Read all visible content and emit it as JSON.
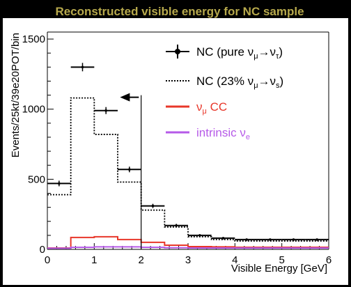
{
  "colors": {
    "title": "#b7a94c",
    "nc_pure": "#000000",
    "nc_sterile": "#000000",
    "numu_cc": "#e8372a",
    "nue": "#b65ae8",
    "frame_bg": "#000000",
    "plot_bg": "#ffffff"
  },
  "chart_data": {
    "type": "line",
    "title": "Reconstructed visible energy for NC sample",
    "xlabel": "Visible Energy [GeV]",
    "ylabel": "Events/25kt/39e20POT/bin",
    "xlim": [
      0,
      6
    ],
    "ylim": [
      0,
      1550
    ],
    "x_ticks": [
      0,
      1,
      2,
      3,
      4,
      5,
      6
    ],
    "y_ticks": [
      0,
      500,
      1000,
      1500
    ],
    "grid": false,
    "legend_position": "top-right",
    "bin_edges": [
      0,
      0.5,
      1.0,
      1.5,
      2.0,
      2.5,
      3.0,
      3.5,
      4.0,
      4.5,
      5.0,
      5.5,
      6.0
    ],
    "series": [
      {
        "name": "NC (pure νμ→ντ)",
        "label_parts": {
          "text": "NC (pure ν",
          "sub1": "μ",
          "arrow": "→ν",
          "sub2": "τ",
          "close": ")"
        },
        "style": "points-with-errors",
        "values": [
          470,
          1300,
          990,
          570,
          310,
          170,
          100,
          80,
          70,
          70,
          70,
          70
        ],
        "errors": [
          20,
          30,
          25,
          20,
          15,
          12,
          8,
          8,
          7,
          7,
          7,
          7
        ]
      },
      {
        "name": "NC (23% νμ→νs)",
        "label_parts": {
          "text": "NC (23% ν",
          "sub1": "μ",
          "arrow": "→ν",
          "sub2": "s",
          "close": ")"
        },
        "style": "dotted-step",
        "values": [
          390,
          1080,
          820,
          480,
          280,
          160,
          90,
          70,
          60,
          60,
          60,
          60
        ]
      },
      {
        "name": "νμ CC",
        "label_parts": {
          "text": "ν",
          "sub1": "μ",
          "rest": " CC"
        },
        "style": "solid-step",
        "values": [
          10,
          85,
          90,
          70,
          50,
          30,
          20,
          18,
          15,
          15,
          15,
          15
        ]
      },
      {
        "name": "intrinsic νe",
        "label_parts": {
          "text": " intrinsic ν",
          "sub1": "e"
        },
        "style": "solid-step",
        "values": [
          8,
          15,
          18,
          18,
          15,
          12,
          10,
          10,
          10,
          10,
          10,
          10
        ]
      }
    ],
    "annotations": [
      {
        "type": "cut-line",
        "x": 2.0,
        "y_top": 1100
      },
      {
        "type": "arrow-left",
        "x_from": 1.95,
        "x_to": 1.55,
        "y": 1085
      }
    ]
  }
}
